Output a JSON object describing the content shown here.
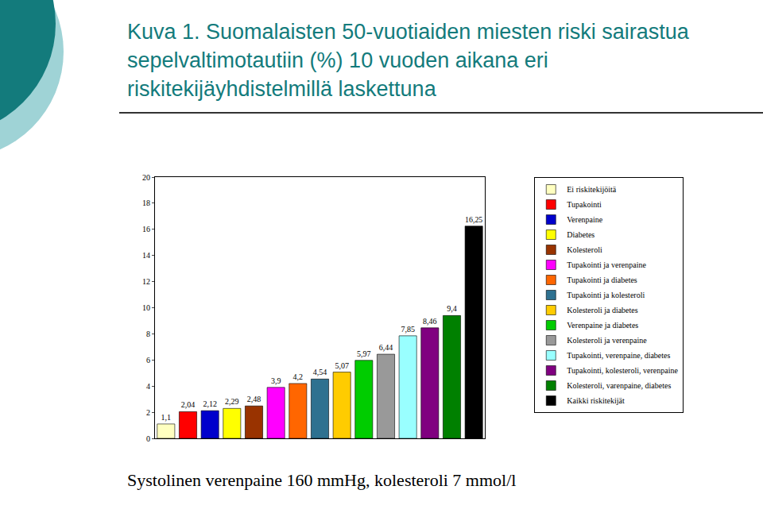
{
  "chart_data": {
    "type": "bar",
    "title": "Kuva 1. Suomalaisten 50-vuotiaiden miesten riski sairastua sepelvaltimotautiin (%) 10 vuoden aikana eri riskitekijäyhdistelmillä laskettuna",
    "annotation": "Systolinen verenpaine 160 mmHg, kolesteroli 7 mmol/l",
    "categories": [
      "Ei riskitekijöitä",
      "Tupakointi",
      "Verenpaine",
      "Diabetes",
      "Kolesteroli",
      "Tupakointi ja verenpaine",
      "Tupakointi ja diabetes",
      "Tupakointi ja kolesteroli",
      "Kolesteroli ja diabetes",
      "Verenpaine ja diabetes",
      "Kolesteroli ja verenpaine",
      "Tupakointi, verenpaine, diabetes",
      "Tupakointi, kolesteroli, verenpaine",
      "Kolesteroli, varenpaine, diabetes",
      "Kaikki riskitekijät"
    ],
    "values": [
      1.1,
      2.04,
      2.12,
      2.29,
      2.48,
      3.9,
      4.2,
      4.54,
      5.07,
      5.97,
      6.44,
      7.85,
      8.46,
      9.4,
      16.25
    ],
    "value_labels": [
      "1,1",
      "2,04",
      "2,12",
      "2,29",
      "2,48",
      "3,9",
      "4,2",
      "4,54",
      "5,07",
      "5,97",
      "6,44",
      "7,85",
      "8,46",
      "9,4",
      "16,25"
    ],
    "colors": [
      "#ffffc0",
      "#ff0000",
      "#0000cc",
      "#ffff00",
      "#993300",
      "#ff00ff",
      "#ff6600",
      "#2e7190",
      "#ffcc00",
      "#00cc00",
      "#999999",
      "#99ffff",
      "#800080",
      "#008000",
      "#000000"
    ],
    "ylim": [
      0,
      20
    ],
    "yticks": [
      0,
      2,
      4,
      6,
      8,
      10,
      12,
      14,
      16,
      18,
      20
    ],
    "grid": false,
    "legend": "right",
    "data_labels": true,
    "tick_labels": "y"
  }
}
